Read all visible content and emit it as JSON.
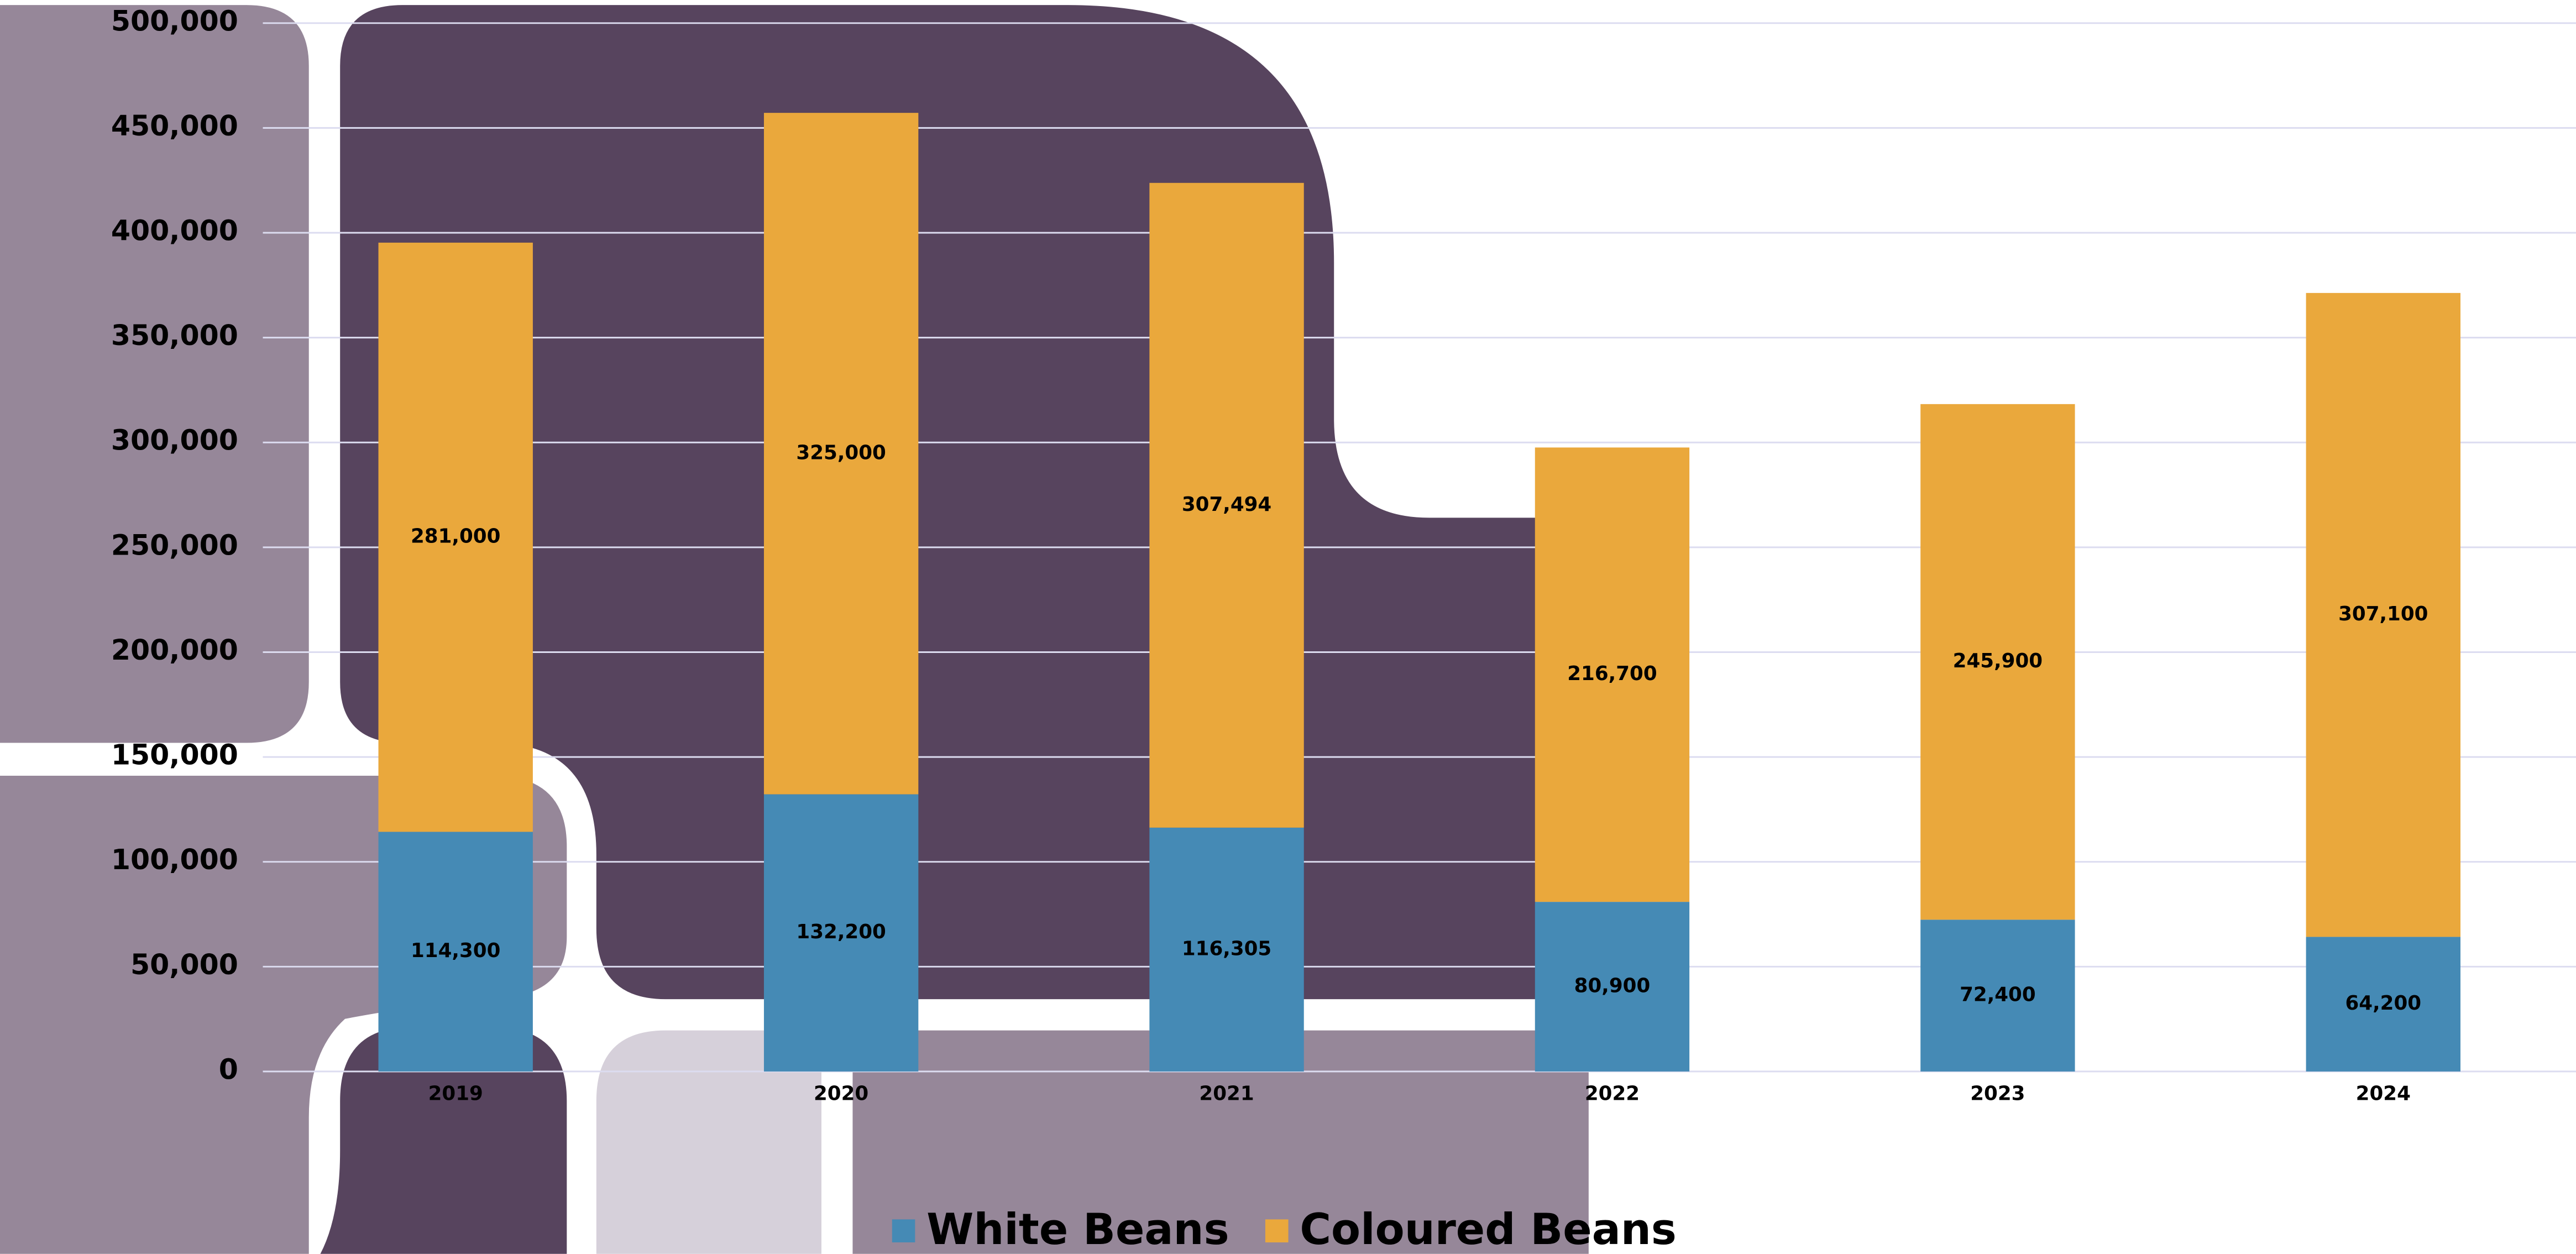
{
  "chart_data": {
    "type": "stacked-bar",
    "categories": [
      "2019",
      "2020",
      "2021",
      "2022",
      "2023",
      "2024"
    ],
    "series": [
      {
        "name": "White Beans",
        "color": "#458ab5",
        "values": [
          114300,
          132200,
          116305,
          80900,
          72400,
          64200
        ],
        "value_labels": [
          "114,300",
          "132,200",
          "116,305",
          "80,900",
          "72,400",
          "64,200"
        ]
      },
      {
        "name": "Coloured Beans",
        "color": "#eaa83c",
        "values": [
          281000,
          325000,
          307494,
          216700,
          245900,
          307100
        ],
        "value_labels": [
          "281,000",
          "325,000",
          "307,494",
          "216,700",
          "245,900",
          "307,100"
        ]
      }
    ],
    "ylim": [
      0,
      500000
    ],
    "yticks": [
      0,
      {
        "value": 50000,
        "label": "50,000"
      },
      {
        "value": 100000,
        "label": "100,000"
      },
      {
        "value": 150000,
        "label": "150,000"
      },
      {
        "value": 200000,
        "label": "200,000"
      },
      {
        "value": 250000,
        "label": "250,000"
      },
      {
        "value": 300000,
        "label": "300,000"
      },
      {
        "value": 350000,
        "label": "350,000"
      },
      {
        "value": 400000,
        "label": "400,000"
      },
      {
        "value": 450000,
        "label": "450,000"
      },
      {
        "value": 500000,
        "label": "500,000"
      }
    ],
    "grid": true,
    "legend": "bottom"
  }
}
